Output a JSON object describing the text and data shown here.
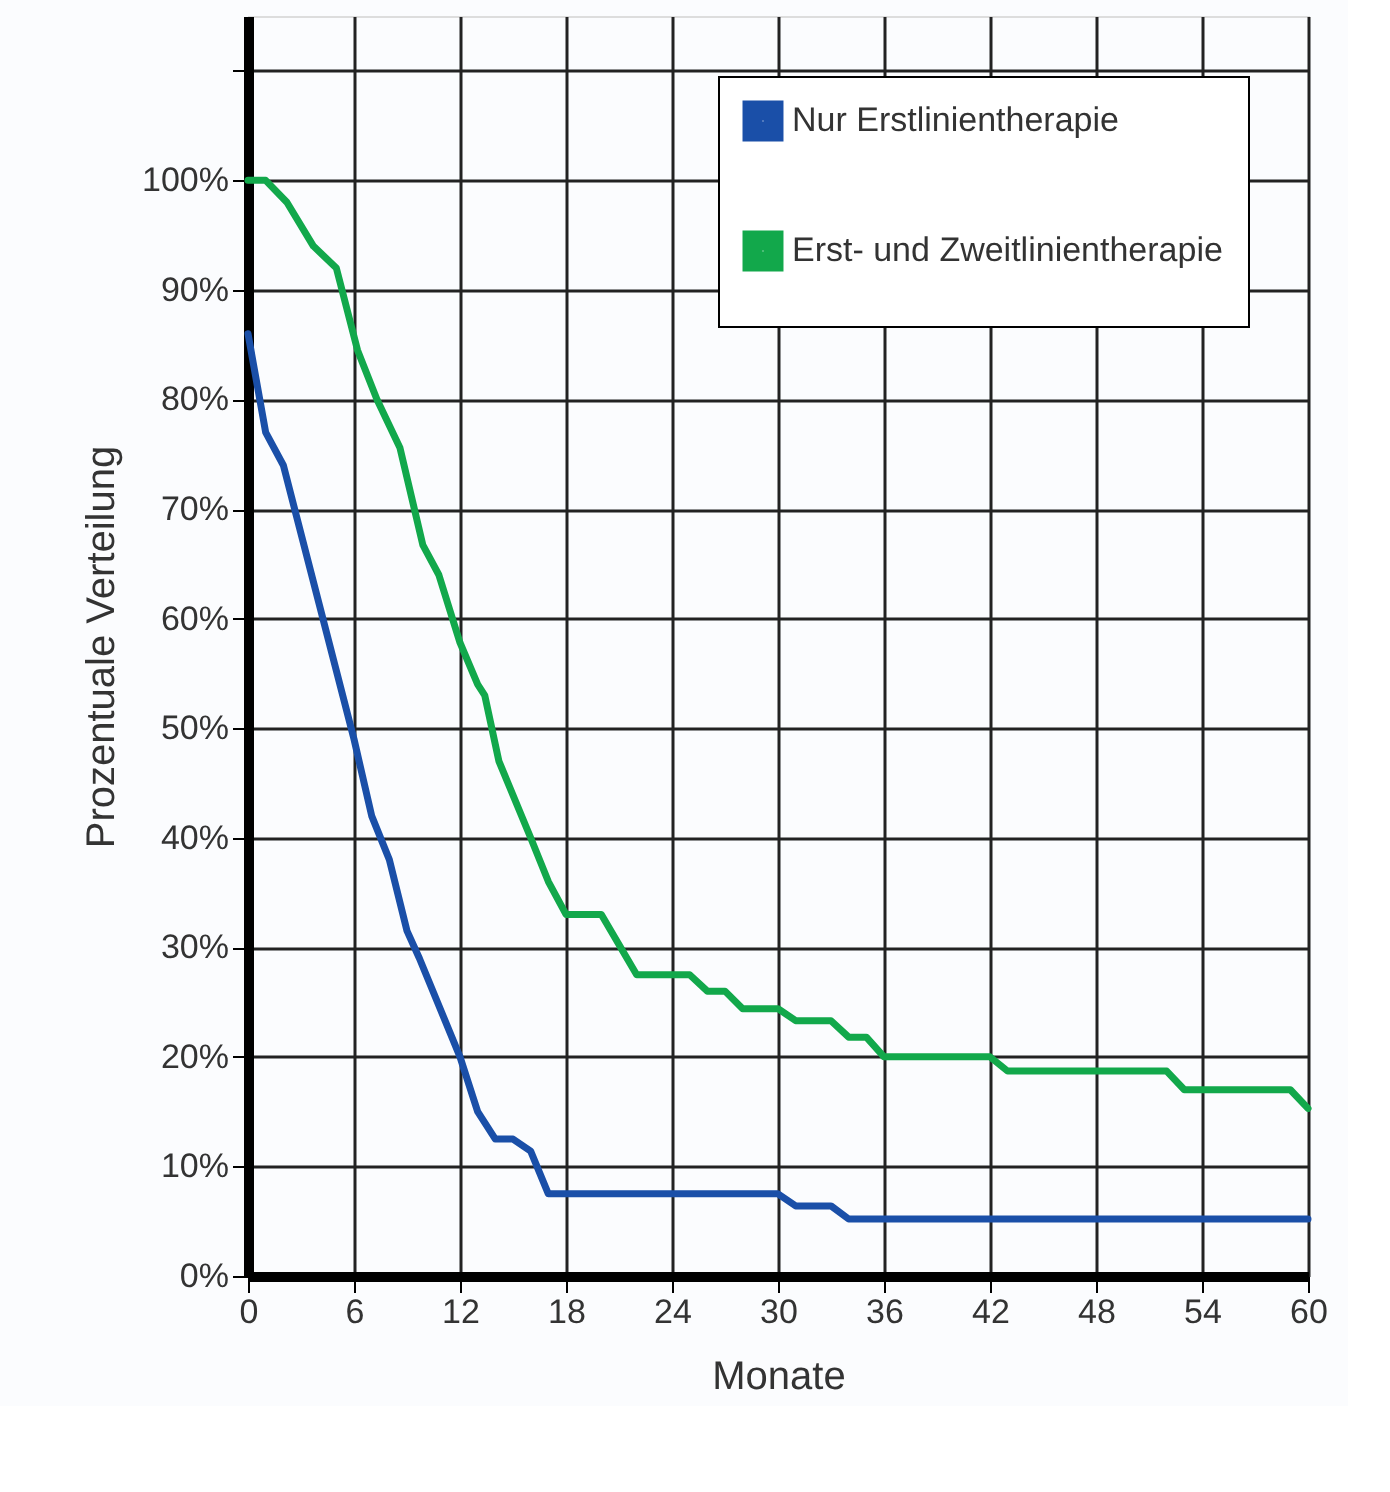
{
  "chart_data": {
    "type": "line",
    "xlabel": "Monate",
    "ylabel": "Prozentuale Verteilung",
    "xlim": [
      0,
      60
    ],
    "xticks": [
      0,
      6,
      12,
      18,
      24,
      30,
      36,
      42,
      48,
      54,
      60
    ],
    "ylim": [
      0,
      115
    ],
    "yticks": [
      {
        "value": 0,
        "label": "0%"
      },
      {
        "value": 10,
        "label": "10%"
      },
      {
        "value": 20,
        "label": "20%"
      },
      {
        "value": 30,
        "label": "30%"
      },
      {
        "value": 40,
        "label": "40%"
      },
      {
        "value": 50,
        "label": "50%"
      },
      {
        "value": 60,
        "label": "60%"
      },
      {
        "value": 70,
        "label": "70%"
      },
      {
        "value": 80,
        "label": "80%"
      },
      {
        "value": 90,
        "label": "90%"
      },
      {
        "value": 100,
        "label": "100%"
      },
      {
        "value": 110,
        "label": null
      }
    ],
    "grid": true,
    "legend": "top right",
    "marker": "none",
    "line_style": "solid",
    "series": [
      {
        "name": "Nur Erstlinientherapie",
        "color": "#1a4fa8",
        "x": [
          0,
          1,
          2,
          6,
          7,
          8,
          9,
          9.7,
          12,
          13,
          14,
          15,
          16,
          17,
          30,
          31,
          33,
          34,
          60
        ],
        "values": [
          86,
          77,
          74,
          49,
          42,
          38,
          31.5,
          29,
          20,
          15,
          12.5,
          12.5,
          11.4,
          7.5,
          7.5,
          6.4,
          6.4,
          5.2,
          5.2
        ]
      },
      {
        "name": "Erst- und Zweitlinientherapie",
        "color": "#12a84b",
        "x": [
          0,
          1,
          2.2,
          3.7,
          5,
          6.2,
          7.3,
          8.6,
          9.9,
          10.8,
          12,
          13,
          13.4,
          14.2,
          16,
          17,
          18,
          20,
          22,
          25,
          26,
          27,
          28,
          30,
          31,
          33,
          34,
          35,
          36,
          42,
          43,
          52,
          53,
          59,
          60
        ],
        "values": [
          100,
          100,
          98,
          94,
          92,
          84.5,
          80,
          75.6,
          66.7,
          64,
          57.8,
          54,
          53,
          47,
          40,
          36,
          33,
          33,
          27.5,
          27.5,
          26,
          26,
          24.4,
          24.4,
          23.3,
          23.3,
          21.8,
          21.8,
          20,
          20,
          18.7,
          18.7,
          17,
          17,
          15.3
        ]
      }
    ]
  }
}
